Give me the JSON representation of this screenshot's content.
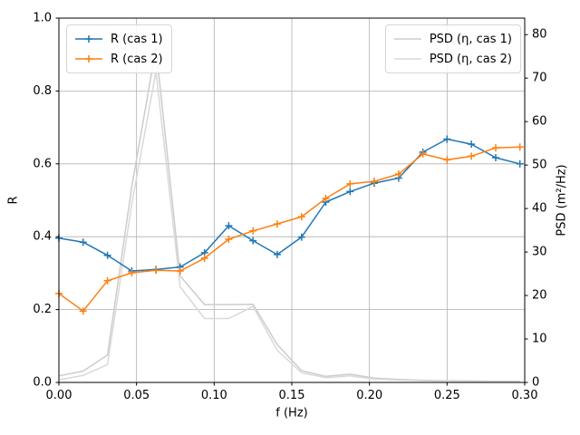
{
  "figure": {
    "background": "#ffffff",
    "spine_color": "#000000",
    "grid_color": "#b0b0b0",
    "tick_label_color": "#000000"
  },
  "chart_data": {
    "type": "line",
    "title": "",
    "xlabel": "f (Hz)",
    "ylabel_left": "R",
    "ylabel_right": "PSD (m²/Hz)",
    "xlim": [
      0.0,
      0.3
    ],
    "ylim_left": [
      0.0,
      1.0
    ],
    "ylim_right": [
      0.0,
      83.8
    ],
    "grid": true,
    "legend_left_position": "upper left",
    "legend_right_position": "upper right",
    "x_ticks": [
      "0.00",
      "0.05",
      "0.10",
      "0.15",
      "0.20",
      "0.25",
      "0.30"
    ],
    "y_ticks_left": [
      "0.0",
      "0.2",
      "0.4",
      "0.6",
      "0.8",
      "1.0"
    ],
    "y_ticks_right": [
      "0",
      "10",
      "20",
      "30",
      "40",
      "50",
      "60",
      "70",
      "80"
    ],
    "x": [
      0.0,
      0.0156,
      0.0313,
      0.0469,
      0.0625,
      0.0781,
      0.0938,
      0.1094,
      0.125,
      0.1406,
      0.1563,
      0.1719,
      0.1875,
      0.2031,
      0.2188,
      0.2344,
      0.25,
      0.2656,
      0.2813,
      0.2969
    ],
    "series": [
      {
        "name": "R (cas 1)",
        "axis": "left",
        "color": "#1f77b4",
        "marker": "+",
        "values": [
          0.396,
          0.385,
          0.349,
          0.306,
          0.31,
          0.317,
          0.356,
          0.43,
          0.389,
          0.351,
          0.399,
          0.495,
          0.524,
          0.547,
          0.561,
          0.632,
          0.668,
          0.654,
          0.617,
          0.6
        ]
      },
      {
        "name": "R (cas 2)",
        "axis": "left",
        "color": "#ff7f0e",
        "marker": "+",
        "values": [
          0.244,
          0.196,
          0.279,
          0.301,
          0.308,
          0.306,
          0.341,
          0.393,
          0.416,
          0.435,
          0.455,
          0.505,
          0.545,
          0.552,
          0.572,
          0.627,
          0.611,
          0.621,
          0.644,
          0.646
        ]
      },
      {
        "name": "PSD (η, cas 1)",
        "axis": "right",
        "color": "#cccccc",
        "marker": null,
        "values": [
          1.5,
          2.6,
          6.3,
          45.0,
          77.0,
          24.5,
          17.9,
          17.9,
          18.0,
          8.7,
          2.7,
          1.4,
          1.9,
          1.0,
          0.7,
          0.5,
          0.4,
          0.35,
          0.3,
          0.3
        ]
      },
      {
        "name": "PSD (η, cas 2)",
        "axis": "right",
        "color": "#d9d9d9",
        "marker": null,
        "values": [
          0.6,
          1.6,
          4.1,
          41.0,
          71.5,
          22.0,
          14.7,
          14.7,
          17.5,
          7.4,
          2.2,
          1.1,
          1.5,
          0.8,
          0.55,
          0.4,
          0.3,
          0.25,
          0.2,
          0.2
        ]
      }
    ]
  }
}
